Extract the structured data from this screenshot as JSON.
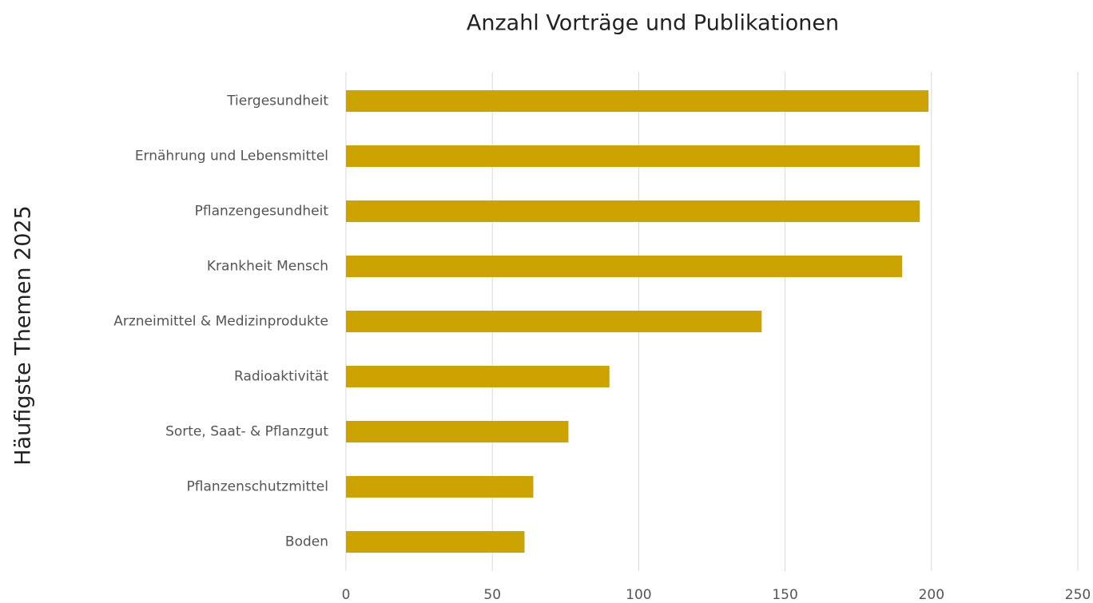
{
  "chart_data": {
    "type": "bar",
    "orientation": "horizontal",
    "x_label": "Anzahl Vorträge und Publikationen",
    "y_label": "Häufigste Themen 2025",
    "categories": [
      "Tiergesundheit",
      "Ernährung und Lebensmittel",
      "Pflanzengesundheit",
      "Krankheit Mensch",
      "Arzneimittel & Medizinprodukte",
      "Radioaktivität",
      "Sorte, Saat- & Pflanzgut",
      "Pflanzenschutzmittel",
      "Boden"
    ],
    "values": [
      199,
      196,
      196,
      190,
      142,
      90,
      76,
      64,
      61
    ],
    "color": "#cca300",
    "xlim": [
      0,
      250
    ],
    "xticks": [
      0,
      50,
      100,
      150,
      200,
      250
    ],
    "grid": true
  }
}
